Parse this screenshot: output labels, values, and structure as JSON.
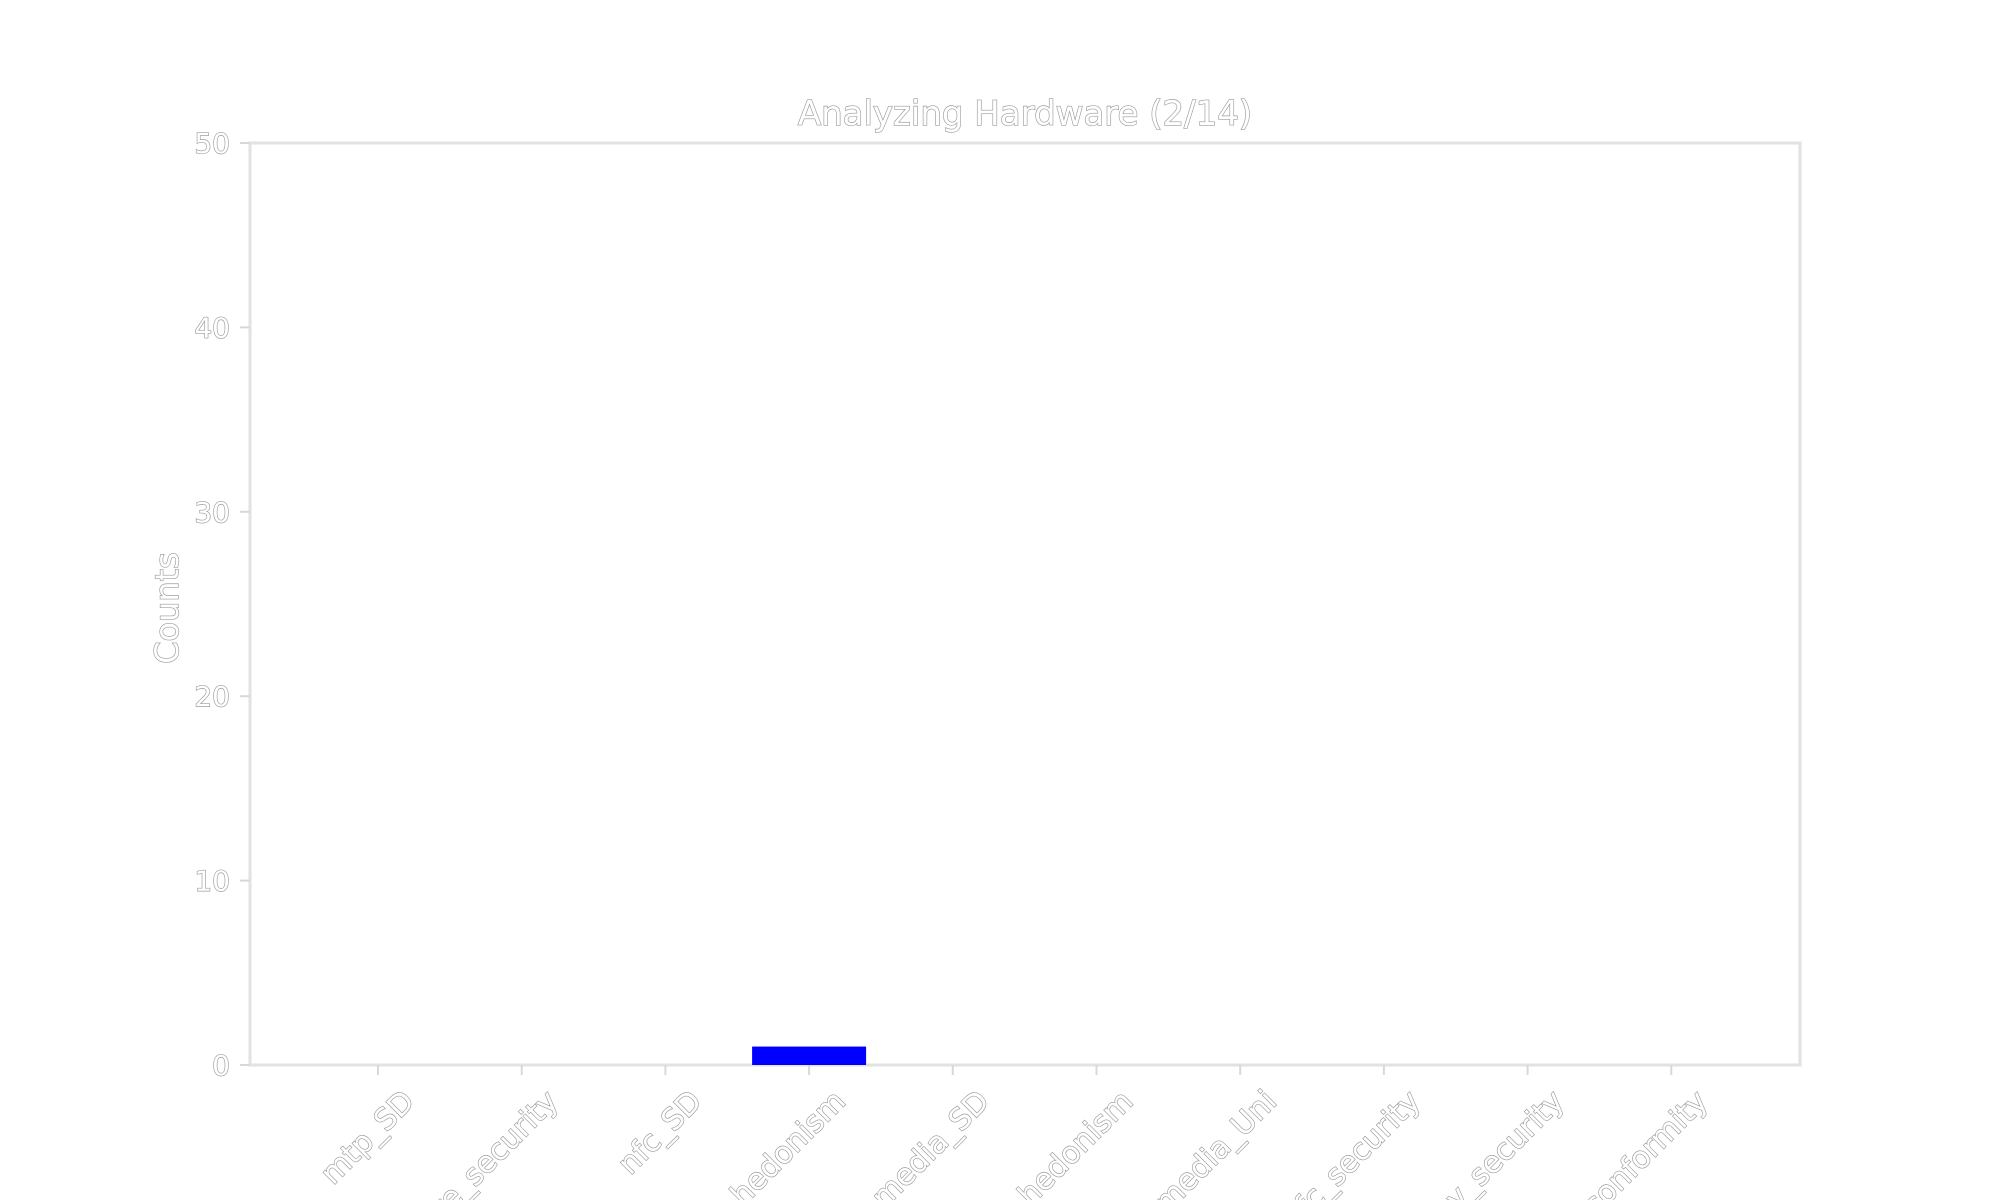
{
  "chart_data": {
    "type": "bar",
    "title": "Analyzing Hardware (2/14)",
    "xlabel": "",
    "ylabel": "Counts",
    "ylim": [
      0,
      50
    ],
    "yticks": [
      0,
      10,
      20,
      30,
      40,
      50
    ],
    "grid": false,
    "legend": "none",
    "categories": [
      "mtp_SD",
      "...re_security",
      "nfc_SD",
      "...hedonism",
      "media_SD",
      "...hedonism",
      "...media_Uni",
      "...fc_security",
      "...ny_security",
      "...conformity"
    ],
    "values": [
      0,
      0,
      0,
      1,
      0,
      0,
      0,
      0,
      0,
      0
    ],
    "bar_color": "#0000ff"
  }
}
